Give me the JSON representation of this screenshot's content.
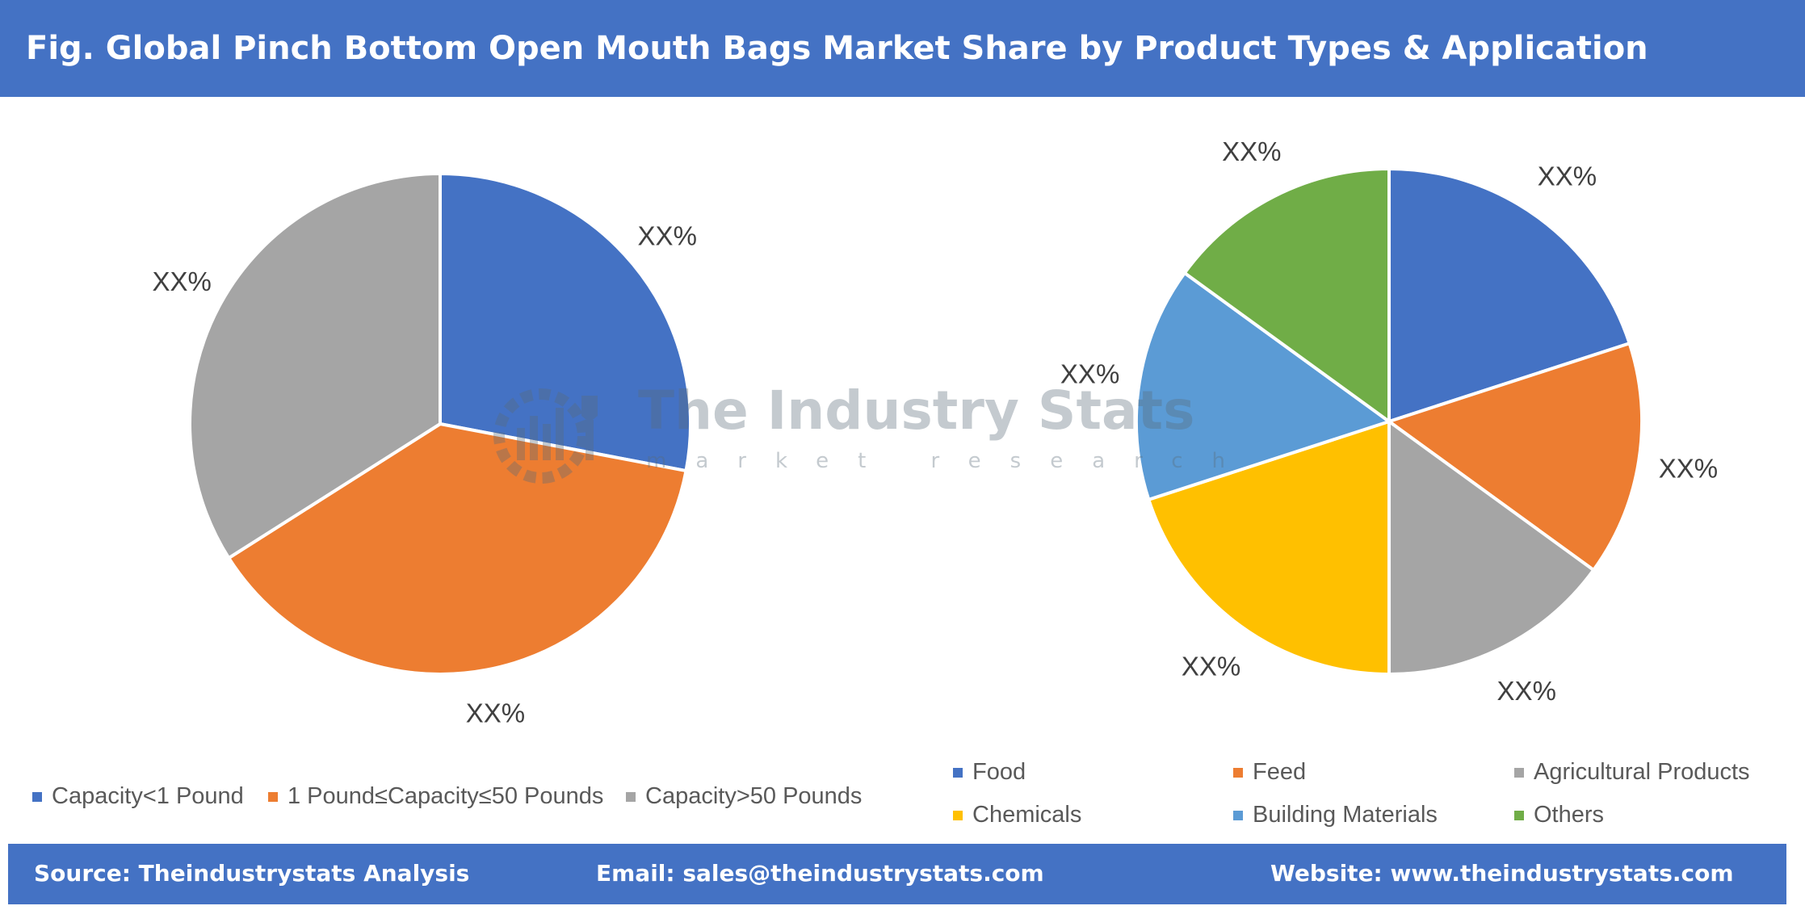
{
  "header": {
    "title": "Fig. Global Pinch Bottom Open Mouth Bags Market Share by Product Types & Application"
  },
  "watermark": {
    "title": "The Industry Stats",
    "subtitle": "market research"
  },
  "chart_data": [
    {
      "type": "pie",
      "title": "",
      "categories": [
        "Capacity<1 Pound",
        "1 Pound≤Capacity≤50 Pounds",
        "Capacity>50 Pounds"
      ],
      "values": [
        28,
        38,
        34
      ],
      "data_labels": [
        "XX%",
        "XX%",
        "XX%"
      ],
      "colors": [
        "#4472c4",
        "#ed7d31",
        "#a5a5a5"
      ],
      "legend_position": "bottom"
    },
    {
      "type": "pie",
      "title": "",
      "categories": [
        "Food",
        "Feed",
        "Agricultural Products",
        "Chemicals",
        "Building Materials",
        "Others"
      ],
      "values": [
        20,
        15,
        15,
        20,
        15,
        15
      ],
      "data_labels": [
        "XX%",
        "XX%",
        "XX%",
        "XX%",
        "XX%",
        "XX%"
      ],
      "colors": [
        "#4472c4",
        "#ed7d31",
        "#a5a5a5",
        "#ffc000",
        "#5b9bd5",
        "#70ad47"
      ],
      "legend_position": "bottom"
    }
  ],
  "footer": {
    "source": "Source: Theindustrystats Analysis",
    "email": "Email: sales@theindustrystats.com",
    "website": "Website: www.theindustrystats.com"
  }
}
